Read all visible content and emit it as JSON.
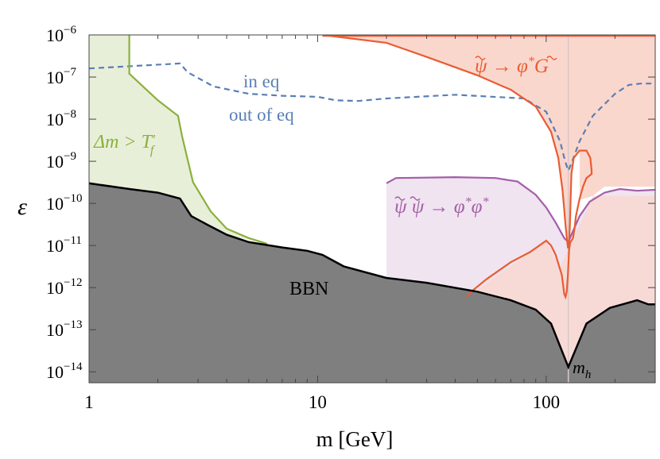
{
  "chart_data": {
    "type": "line",
    "x_scale": "log",
    "y_scale": "log",
    "xlim": [
      1,
      300
    ],
    "ylim": [
      5.5e-15,
      1e-06
    ],
    "xlabel": "m [GeV]",
    "ylabel": "ε",
    "x_ticks": [
      {
        "value": 1,
        "label": "1"
      },
      {
        "value": 10,
        "label": "10"
      },
      {
        "value": 100,
        "label": "100"
      }
    ],
    "y_ticks": [
      {
        "value": 1e-06,
        "exp": "-6"
      },
      {
        "value": 1e-07,
        "exp": "-7"
      },
      {
        "value": 1e-08,
        "exp": "-8"
      },
      {
        "value": 1e-09,
        "exp": "-9"
      },
      {
        "value": 1e-10,
        "exp": "-10"
      },
      {
        "value": 1e-11,
        "exp": "-11"
      },
      {
        "value": 1e-12,
        "exp": "-12"
      },
      {
        "value": 1e-13,
        "exp": "-13"
      },
      {
        "value": 1e-14,
        "exp": "-14"
      }
    ],
    "tick_base": "10",
    "vertical_line": {
      "x": 125,
      "color": "#d8c8c8",
      "label": "m",
      "label_sub": "h"
    },
    "series": [
      {
        "key": "bbn",
        "color": "#000000",
        "fill": "#7f7f7f",
        "points": [
          [
            1,
            3e-10
          ],
          [
            1.5,
            2.2e-10
          ],
          [
            2,
            1.8e-10
          ],
          [
            2.5,
            1.3e-10
          ],
          [
            2.8,
            5e-11
          ],
          [
            3.3,
            3.1e-11
          ],
          [
            4,
            1.8e-11
          ],
          [
            5,
            1.2e-11
          ],
          [
            7,
            9e-12
          ],
          [
            9,
            7.5e-12
          ],
          [
            10.5,
            6e-12
          ],
          [
            13,
            3.2e-12
          ],
          [
            20,
            1.7e-12
          ],
          [
            30,
            1.3e-12
          ],
          [
            50,
            8e-13
          ],
          [
            70,
            5e-13
          ],
          [
            90,
            3e-13
          ],
          [
            105,
            1.4e-13
          ],
          [
            125,
            1.3e-14
          ],
          [
            150,
            1.4e-13
          ],
          [
            190,
            3.3e-13
          ],
          [
            250,
            5e-13
          ],
          [
            280,
            4e-13
          ],
          [
            300,
            4e-13
          ]
        ]
      },
      {
        "key": "delta_m",
        "color": "#8ab03c",
        "fill": "#e8efd9",
        "points": [
          [
            1.5,
            1e-06
          ],
          [
            1.5,
            1.2e-07
          ],
          [
            1.75,
            5.5e-08
          ],
          [
            2.0,
            2.8e-08
          ],
          [
            2.45,
            1.2e-08
          ],
          [
            2.55,
            4e-09
          ],
          [
            2.85,
            3.2e-10
          ],
          [
            3.4,
            6.5e-11
          ],
          [
            4.0,
            2.5e-11
          ],
          [
            5.0,
            1.5e-11
          ],
          [
            6.0,
            1.1e-11
          ]
        ]
      },
      {
        "key": "inout",
        "color": "#5a7fb5",
        "dashed": true,
        "points": [
          [
            1,
            1.6e-07
          ],
          [
            2.5,
            2.1e-07
          ],
          [
            2.7,
            1.3e-07
          ],
          [
            3.5,
            6e-08
          ],
          [
            5,
            4e-08
          ],
          [
            7,
            3.6e-08
          ],
          [
            10,
            3.4e-08
          ],
          [
            12,
            2.8e-08
          ],
          [
            15,
            2.7e-08
          ],
          [
            20,
            3.1e-08
          ],
          [
            40,
            3.8e-08
          ],
          [
            80,
            3.1e-08
          ],
          [
            100,
            1.5e-08
          ],
          [
            115,
            3e-09
          ],
          [
            121,
            1e-09
          ],
          [
            125,
            6e-10
          ],
          [
            130,
            1e-09
          ],
          [
            140,
            3e-09
          ],
          [
            160,
            1.2e-08
          ],
          [
            200,
            4e-08
          ],
          [
            230,
            6.5e-08
          ],
          [
            260,
            7e-08
          ],
          [
            300,
            7e-08
          ]
        ]
      },
      {
        "key": "gravitino",
        "color": "#e95c33",
        "fill": "#fad7cd",
        "points": [
          [
            10.5,
            1e-06
          ],
          [
            20,
            6.5e-07
          ],
          [
            30,
            3e-07
          ],
          [
            50,
            1.1e-07
          ],
          [
            70,
            5e-08
          ],
          [
            90,
            2e-08
          ],
          [
            105,
            5e-09
          ],
          [
            113,
            1.2e-09
          ],
          [
            118,
            2e-10
          ],
          [
            120,
            7e-11
          ],
          [
            121.5,
            3e-11
          ],
          [
            122.5,
            2e-11
          ],
          [
            123.5,
            1.3e-11
          ],
          [
            124.5,
            9e-12
          ],
          [
            125,
            9e-12
          ],
          [
            126,
            1.2e-11
          ],
          [
            127,
            3e-11
          ],
          [
            128,
            1.5e-10
          ],
          [
            129,
            5e-10
          ],
          [
            132,
            1.2e-09
          ],
          [
            140,
            1.8e-09
          ],
          [
            150,
            1.8e-09
          ],
          [
            156,
            1.2e-09
          ],
          [
            158,
            6e-10
          ],
          [
            158,
            5e-10
          ],
          [
            150,
            4e-10
          ],
          [
            145,
            2.5e-10
          ],
          [
            140,
            1.3e-10
          ],
          [
            135,
            5e-11
          ],
          [
            133,
            2.5e-11
          ],
          [
            131,
            1.5e-11
          ],
          [
            129,
            1.3e-11
          ],
          [
            127.5,
            1.2e-11
          ],
          [
            126,
            8e-12
          ],
          [
            124.5,
            2e-12
          ],
          [
            123,
            8e-13
          ],
          [
            121.5,
            6e-13
          ],
          [
            120,
            7e-13
          ],
          [
            117,
            2e-12
          ],
          [
            110,
            6e-12
          ],
          [
            105,
            1e-11
          ],
          [
            100,
            1.3e-11
          ],
          [
            85,
            7e-12
          ],
          [
            70,
            4e-12
          ],
          [
            55,
            1.6e-12
          ],
          [
            47,
            8e-13
          ],
          [
            45,
            6e-13
          ]
        ]
      },
      {
        "key": "annihilation",
        "color": "#a45ea8",
        "fill": "#efe4ef",
        "points": [
          [
            20,
            3e-10
          ],
          [
            22,
            4e-10
          ],
          [
            40,
            4.2e-10
          ],
          [
            60,
            4e-10
          ],
          [
            75,
            3.3e-10
          ],
          [
            90,
            1.6e-10
          ],
          [
            100,
            8e-11
          ],
          [
            110,
            3.5e-11
          ],
          [
            120,
            1.5e-11
          ],
          [
            125,
            1.2e-11
          ],
          [
            130,
            2e-11
          ],
          [
            140,
            5e-11
          ],
          [
            155,
            1.1e-10
          ],
          [
            180,
            1.8e-10
          ],
          [
            210,
            2.2e-10
          ],
          [
            250,
            2e-10
          ],
          [
            300,
            2.1e-10
          ]
        ]
      }
    ],
    "annotations": {
      "in_eq": "in eq",
      "out_eq": "out of eq",
      "bbn": "BBN",
      "delta_m": "Δm > T",
      "delta_m_sub": "f",
      "delta_m_prime": "′",
      "gravitino": "ψ → φ",
      "gravitino_star": "*",
      "gravitino_G": "G",
      "annihilation": "ψ ψ → φ",
      "annihilation_mid": "φ",
      "annihilation_star": "*"
    }
  }
}
